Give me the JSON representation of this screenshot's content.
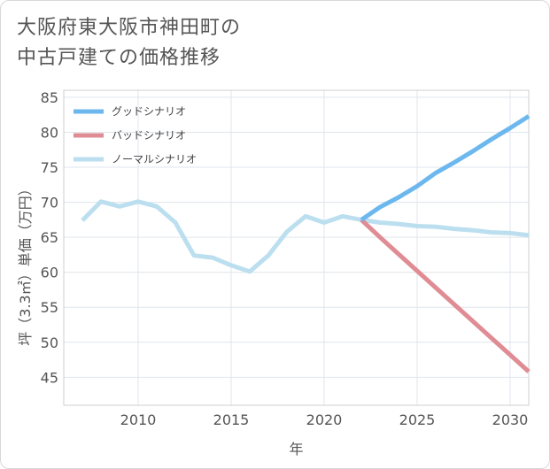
{
  "title": {
    "line1": "大阪府東大阪市神田町の",
    "line2": "中古戸建ての価格推移"
  },
  "chart_data": {
    "type": "line",
    "xlabel": "年",
    "ylabel": "坪（3.3㎡）単価（万円）",
    "xlim": [
      2006,
      2031
    ],
    "ylim": [
      41,
      86
    ],
    "x_ticks": [
      2010,
      2015,
      2020,
      2025,
      2030
    ],
    "y_ticks": [
      45,
      50,
      55,
      60,
      65,
      70,
      75,
      80,
      85
    ],
    "grid": true,
    "legend_position": "top-left",
    "series": [
      {
        "name": "グッドシナリオ",
        "color": "#6cb8ee",
        "x": [
          2022,
          2023,
          2024,
          2025,
          2026,
          2027,
          2028,
          2029,
          2030,
          2031
        ],
        "y": [
          67.5,
          69.3,
          70.7,
          72.3,
          74.2,
          75.7,
          77.3,
          79.0,
          80.6,
          82.3
        ]
      },
      {
        "name": "バッドシナリオ",
        "color": "#e08c94",
        "x": [
          2022,
          2023,
          2024,
          2025,
          2026,
          2027,
          2028,
          2029,
          2030,
          2031
        ],
        "y": [
          67.5,
          65.0,
          62.6,
          60.2,
          57.8,
          55.4,
          53.0,
          50.6,
          48.2,
          45.8
        ]
      },
      {
        "name": "ノーマルシナリオ",
        "color": "#bcdff0",
        "x": [
          2007,
          2008,
          2009,
          2010,
          2011,
          2012,
          2013,
          2014,
          2015,
          2016,
          2017,
          2018,
          2019,
          2020,
          2021,
          2022,
          2023,
          2024,
          2025,
          2026,
          2027,
          2028,
          2029,
          2030,
          2031
        ],
        "y": [
          67.4,
          70.1,
          69.4,
          70.1,
          69.4,
          67.1,
          62.4,
          62.1,
          61.0,
          60.1,
          62.4,
          65.8,
          68.0,
          67.1,
          68.0,
          67.5,
          67.1,
          66.9,
          66.6,
          66.5,
          66.2,
          66.0,
          65.7,
          65.6,
          65.3
        ]
      }
    ]
  }
}
